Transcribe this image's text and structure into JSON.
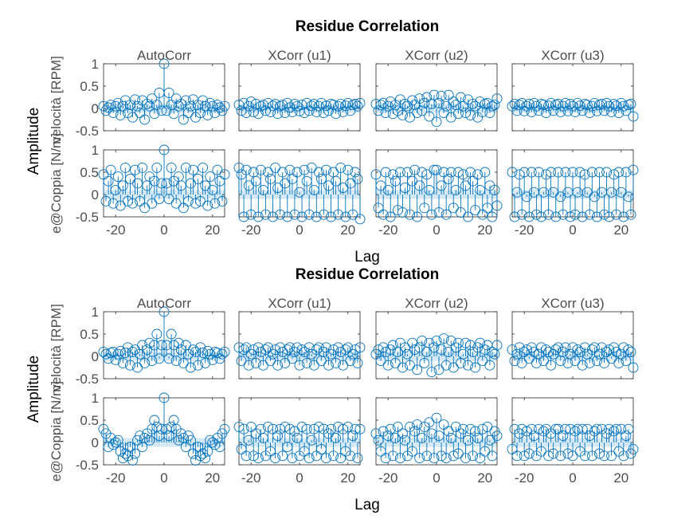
{
  "chart_data": [
    {
      "type": "stem",
      "title": "Residue Correlation",
      "xlabel": "Lag",
      "ylabel": "Amplitude",
      "row_labels": [
        "velocità [RPM]",
        "e@Coppia [N/m]"
      ],
      "column_titles": [
        "AutoCorr",
        "XCorr (u1)",
        "XCorr (u2)",
        "XCorr (u3)"
      ],
      "xlim": [
        -25,
        25
      ],
      "ylim": [
        -0.5,
        1
      ],
      "xticks": [
        -20,
        0,
        20
      ],
      "yticks": [
        -0.5,
        0,
        0.5,
        1
      ],
      "x": [
        -25,
        -24,
        -23,
        -22,
        -21,
        -20,
        -19,
        -18,
        -17,
        -16,
        -15,
        -14,
        -13,
        -12,
        -11,
        -10,
        -9,
        -8,
        -7,
        -6,
        -5,
        -4,
        -3,
        -2,
        -1,
        0,
        1,
        2,
        3,
        4,
        5,
        6,
        7,
        8,
        9,
        10,
        11,
        12,
        13,
        14,
        15,
        16,
        17,
        18,
        19,
        20,
        21,
        22,
        23,
        24,
        25
      ],
      "confidence_bound": 0.1,
      "series": [
        [
          [
            0.05,
            -0.05,
            0.02,
            0.08,
            -0.1,
            0.05,
            0.12,
            -0.15,
            0.05,
            0.18,
            -0.1,
            0.08,
            -0.2,
            0.2,
            0.05,
            -0.1,
            0.18,
            -0.25,
            0.1,
            0.05,
            0.22,
            -0.12,
            0.08,
            0.35,
            -0.05,
            1.0,
            -0.05,
            0.35,
            0.08,
            -0.12,
            0.22,
            0.05,
            0.1,
            -0.25,
            0.18,
            -0.1,
            0.05,
            0.2,
            -0.2,
            0.08,
            -0.1,
            0.18,
            0.05,
            -0.15,
            0.12,
            0.05,
            -0.1,
            0.08,
            0.02,
            -0.05,
            0.05
          ],
          [
            0.08,
            -0.05,
            0.12,
            -0.1,
            0.05,
            0.15,
            -0.08,
            0.1,
            -0.12,
            0.05,
            0.08,
            -0.05,
            0.12,
            -0.08,
            0.06,
            0.1,
            -0.12,
            0.05,
            0.08,
            -0.1,
            0.12,
            0.02,
            -0.08,
            0.1,
            0.05,
            -0.06,
            0.08,
            -0.1,
            0.12,
            -0.05,
            0.06,
            0.1,
            -0.08,
            0.05,
            0.12,
            -0.1,
            0.06,
            -0.05,
            0.1,
            0.08,
            -0.12,
            0.05,
            0.1,
            -0.08,
            0.06,
            0.12,
            -0.05,
            0.08,
            0.1,
            0.05,
            0.12
          ],
          [
            0.1,
            -0.05,
            0.08,
            0.12,
            -0.1,
            0.05,
            0.15,
            -0.12,
            0.08,
            -0.05,
            0.2,
            -0.15,
            0.1,
            0.05,
            -0.2,
            0.18,
            0.08,
            -0.1,
            0.22,
            -0.05,
            0.12,
            0.25,
            -0.18,
            0.1,
            0.3,
            -0.3,
            0.12,
            0.28,
            -0.1,
            0.05,
            0.3,
            -0.2,
            0.15,
            0.08,
            -0.12,
            0.25,
            0.05,
            -0.1,
            0.2,
            -0.15,
            0.1,
            0.05,
            -0.2,
            0.15,
            -0.08,
            0.1,
            0.12,
            -0.1,
            0.05,
            0.08,
            0.22
          ],
          [
            0.05,
            0.1,
            -0.05,
            0.08,
            0.12,
            -0.06,
            0.05,
            0.1,
            -0.08,
            0.12,
            0.05,
            -0.05,
            0.1,
            0.08,
            -0.1,
            0.06,
            0.12,
            -0.05,
            0.08,
            0.1,
            -0.08,
            0.05,
            0.12,
            -0.06,
            0.1,
            0.05,
            -0.08,
            0.12,
            0.06,
            -0.05,
            0.1,
            0.08,
            -0.1,
            0.05,
            0.12,
            -0.06,
            0.08,
            0.1,
            -0.05,
            0.12,
            0.05,
            -0.08,
            0.1,
            0.06,
            -0.1,
            0.12,
            0.05,
            -0.05,
            0.08,
            0.1,
            -0.18
          ]
        ],
        [
          [
            0.45,
            -0.15,
            0.3,
            0.55,
            -0.2,
            0.1,
            0.4,
            -0.25,
            0.2,
            0.6,
            -0.15,
            0.35,
            -0.2,
            0.55,
            0.25,
            -0.15,
            0.6,
            -0.3,
            0.2,
            0.4,
            -0.2,
            0.3,
            0.6,
            -0.1,
            0.25,
            1.0,
            0.25,
            -0.1,
            0.6,
            0.3,
            -0.2,
            0.4,
            0.2,
            -0.3,
            0.6,
            -0.15,
            0.25,
            0.55,
            -0.2,
            0.35,
            -0.15,
            0.6,
            0.2,
            -0.25,
            0.4,
            0.1,
            -0.2,
            0.55,
            0.3,
            -0.15,
            0.45
          ],
          [
            0.6,
            0.45,
            -0.5,
            0.55,
            0.2,
            -0.45,
            0.5,
            0.3,
            -0.5,
            0.55,
            0.1,
            -0.45,
            0.5,
            0.35,
            -0.5,
            0.6,
            0.15,
            -0.45,
            0.5,
            0.25,
            -0.5,
            0.55,
            0.35,
            -0.45,
            0.5,
            0.05,
            -0.5,
            0.55,
            0.3,
            -0.45,
            0.6,
            0.1,
            -0.5,
            0.5,
            0.35,
            -0.45,
            0.55,
            0.2,
            -0.5,
            0.5,
            0.3,
            -0.45,
            0.6,
            0.15,
            -0.5,
            0.55,
            0.25,
            -0.45,
            0.5,
            0.35,
            -0.55
          ],
          [
            0.45,
            -0.3,
            0.2,
            -0.45,
            0.5,
            0.1,
            -0.5,
            0.45,
            0.3,
            -0.35,
            0.5,
            -0.4,
            0.15,
            0.5,
            -0.45,
            0.3,
            0.55,
            -0.5,
            0.2,
            0.5,
            -0.3,
            0.45,
            0.1,
            -0.45,
            0.55,
            0.55,
            -0.4,
            0.2,
            0.5,
            -0.45,
            0.35,
            0.5,
            -0.3,
            0.1,
            0.5,
            -0.4,
            0.45,
            0.2,
            -0.5,
            0.5,
            0.3,
            -0.35,
            0.45,
            0.1,
            -0.45,
            0.5,
            -0.3,
            0.2,
            -0.5,
            0.1,
            -0.25
          ],
          [
            0.5,
            -0.5,
            0.05,
            0.45,
            -0.45,
            0.5,
            -0.05,
            -0.5,
            0.5,
            0.05,
            -0.45,
            0.5,
            -0.5,
            0.05,
            0.45,
            -0.45,
            0.5,
            0.05,
            -0.5,
            0.5,
            -0.05,
            -0.45,
            0.5,
            0.05,
            -0.5,
            0.5,
            -0.45,
            0.05,
            0.5,
            -0.5,
            0.45,
            0.05,
            -0.45,
            0.5,
            -0.05,
            -0.5,
            0.5,
            0.05,
            -0.45,
            0.5,
            -0.5,
            0.05,
            0.45,
            -0.45,
            0.5,
            0.05,
            -0.5,
            0.5,
            -0.05,
            -0.45,
            0.55
          ]
        ],
        [
          [
            0.1,
            0.05,
            -0.05,
            0.08,
            0.1,
            -0.08,
            0.05,
            0.12,
            -0.15,
            0.08,
            0.2,
            -0.2,
            0.1,
            0.15,
            -0.25,
            0.05,
            0.25,
            -0.15,
            0.15,
            0.3,
            -0.1,
            0.25,
            0.5,
            -0.05,
            0.25,
            1.0,
            0.25,
            -0.05,
            0.5,
            0.25,
            -0.1,
            0.3,
            0.15,
            -0.15,
            0.25,
            0.05,
            -0.25,
            0.15,
            0.1,
            -0.2,
            0.2,
            0.08,
            -0.15,
            0.12,
            0.05,
            -0.08,
            0.1,
            0.08,
            -0.05,
            0.05,
            0.1
          ],
          [
            0.2,
            -0.1,
            0.15,
            0.2,
            -0.2,
            0.05,
            0.15,
            -0.15,
            0.2,
            0.1,
            -0.2,
            0.15,
            0.2,
            -0.1,
            0.05,
            0.15,
            -0.2,
            0.2,
            0.1,
            -0.15,
            0.15,
            0.2,
            -0.05,
            0.1,
            0.2,
            -0.2,
            0.15,
            0.1,
            -0.15,
            0.2,
            0.05,
            -0.2,
            0.15,
            0.2,
            -0.1,
            0.1,
            0.2,
            -0.2,
            0.05,
            0.15,
            -0.15,
            0.2,
            0.1,
            -0.2,
            0.15,
            0.2,
            -0.1,
            0.05,
            0.15,
            -0.15,
            0.2
          ],
          [
            0.05,
            0.15,
            -0.1,
            0.2,
            0.1,
            -0.2,
            0.15,
            0.25,
            -0.15,
            0.1,
            0.3,
            -0.25,
            0.2,
            0.05,
            -0.2,
            0.3,
            0.15,
            -0.3,
            0.2,
            0.35,
            -0.15,
            0.1,
            0.3,
            -0.35,
            0.2,
            0.35,
            -0.3,
            0.15,
            0.4,
            -0.2,
            0.1,
            0.35,
            -0.25,
            0.2,
            0.3,
            -0.15,
            0.05,
            0.3,
            -0.2,
            0.25,
            0.1,
            -0.25,
            0.2,
            0.3,
            -0.1,
            0.15,
            0.25,
            -0.2,
            0.1,
            0.05,
            0.25
          ],
          [
            0.15,
            -0.1,
            0.05,
            0.2,
            -0.15,
            0.1,
            0.15,
            -0.05,
            0.2,
            0.1,
            -0.15,
            0.05,
            0.2,
            -0.1,
            0.15,
            0.1,
            -0.2,
            0.05,
            0.15,
            0.2,
            -0.1,
            0.1,
            0.2,
            -0.15,
            0.05,
            0.2,
            -0.1,
            0.15,
            0.1,
            -0.2,
            0.2,
            0.05,
            -0.15,
            0.15,
            0.2,
            -0.1,
            0.05,
            0.2,
            -0.15,
            0.1,
            0.15,
            -0.05,
            0.2,
            0.1,
            -0.15,
            0.05,
            0.2,
            -0.1,
            0.15,
            0.1,
            -0.25
          ]
        ],
        [
          [
            0.3,
            0.2,
            -0.1,
            0.1,
            -0.05,
            0.0,
            0.05,
            -0.2,
            -0.35,
            -0.25,
            -0.3,
            -0.1,
            -0.4,
            -0.25,
            0.05,
            0.15,
            -0.1,
            0.1,
            0.2,
            0.05,
            0.3,
            0.5,
            0.35,
            0.15,
            0.3,
            1.0,
            0.3,
            0.15,
            0.35,
            0.5,
            0.3,
            0.05,
            0.2,
            0.1,
            -0.1,
            0.15,
            0.05,
            -0.25,
            -0.4,
            -0.1,
            -0.3,
            -0.25,
            -0.35,
            -0.2,
            0.05,
            0.0,
            -0.05,
            0.1,
            -0.1,
            0.2,
            0.3
          ],
          [
            0.35,
            -0.15,
            0.3,
            -0.3,
            0.05,
            0.35,
            -0.3,
            0.2,
            -0.35,
            0.3,
            0.1,
            -0.3,
            0.35,
            -0.2,
            0.3,
            -0.35,
            0.15,
            0.3,
            -0.3,
            0.35,
            -0.1,
            0.3,
            -0.35,
            0.25,
            0.1,
            -0.3,
            0.35,
            -0.2,
            0.3,
            -0.35,
            0.05,
            0.3,
            -0.3,
            0.35,
            -0.15,
            0.3,
            -0.35,
            0.2,
            0.3,
            -0.3,
            0.1,
            0.35,
            -0.35,
            0.3,
            -0.2,
            0.35,
            -0.3,
            0.15,
            0.3,
            -0.35,
            0.3
          ],
          [
            0.2,
            0.05,
            -0.2,
            0.25,
            -0.35,
            0.15,
            0.3,
            -0.3,
            0.1,
            0.35,
            -0.35,
            0.2,
            0.05,
            -0.3,
            0.35,
            -0.2,
            0.25,
            0.4,
            -0.35,
            0.1,
            0.35,
            -0.3,
            0.45,
            0.2,
            -0.35,
            0.55,
            0.15,
            -0.3,
            0.4,
            -0.35,
            0.25,
            0.1,
            -0.3,
            0.35,
            -0.25,
            0.2,
            0.3,
            -0.35,
            0.05,
            0.3,
            -0.3,
            0.25,
            0.1,
            -0.35,
            0.3,
            -0.2,
            0.35,
            0.05,
            -0.3,
            0.25,
            0.15
          ],
          [
            -0.15,
            0.3,
            -0.3,
            0.2,
            0.3,
            -0.3,
            0.25,
            -0.25,
            0.3,
            0.15,
            -0.3,
            0.3,
            -0.2,
            0.25,
            0.3,
            -0.3,
            0.2,
            -0.25,
            0.3,
            0.3,
            -0.3,
            0.15,
            0.3,
            -0.25,
            0.3,
            -0.3,
            0.25,
            0.3,
            -0.2,
            0.3,
            -0.3,
            0.3,
            0.15,
            -0.3,
            0.25,
            0.3,
            -0.25,
            0.3,
            -0.3,
            0.2,
            0.3,
            -0.3,
            0.25,
            0.3,
            -0.2,
            0.3,
            -0.3,
            0.15,
            0.3,
            -0.25,
            -0.15
          ]
        ]
      ]
    },
    {
      "type": "stem",
      "title": "Residue Correlation",
      "xlabel": "Lag",
      "ylabel": "Amplitude",
      "row_labels": [
        "velocità [RPM]",
        "e@Coppia [N/m]"
      ],
      "column_titles": [
        "AutoCorr",
        "XCorr (u1)",
        "XCorr (u2)",
        "XCorr (u3)"
      ],
      "xlim": [
        -25,
        25
      ],
      "ylim": [
        -0.5,
        1
      ],
      "xticks": [
        -20,
        0,
        20
      ],
      "yticks": [
        -0.5,
        0,
        0.5,
        1
      ]
    }
  ],
  "figure": {
    "title": "Residue Correlation",
    "xlabel": "Lag",
    "ylabel": "Amplitude",
    "row_label_top": "velocità [RPM]",
    "row_label_bottom": "e@Coppia [N/m]",
    "columns": [
      "AutoCorr",
      "XCorr (u1)",
      "XCorr (u2)",
      "XCorr (u3)"
    ],
    "x_ticks": [
      "-20",
      "0",
      "20"
    ],
    "y_ticks": [
      "-0.5",
      "0",
      "0.5",
      "1"
    ]
  },
  "colors": {
    "stem": "#0072BD",
    "confidence": "#cfe5f5",
    "axis": "#262626",
    "tick_text": "#4d4d4d"
  }
}
